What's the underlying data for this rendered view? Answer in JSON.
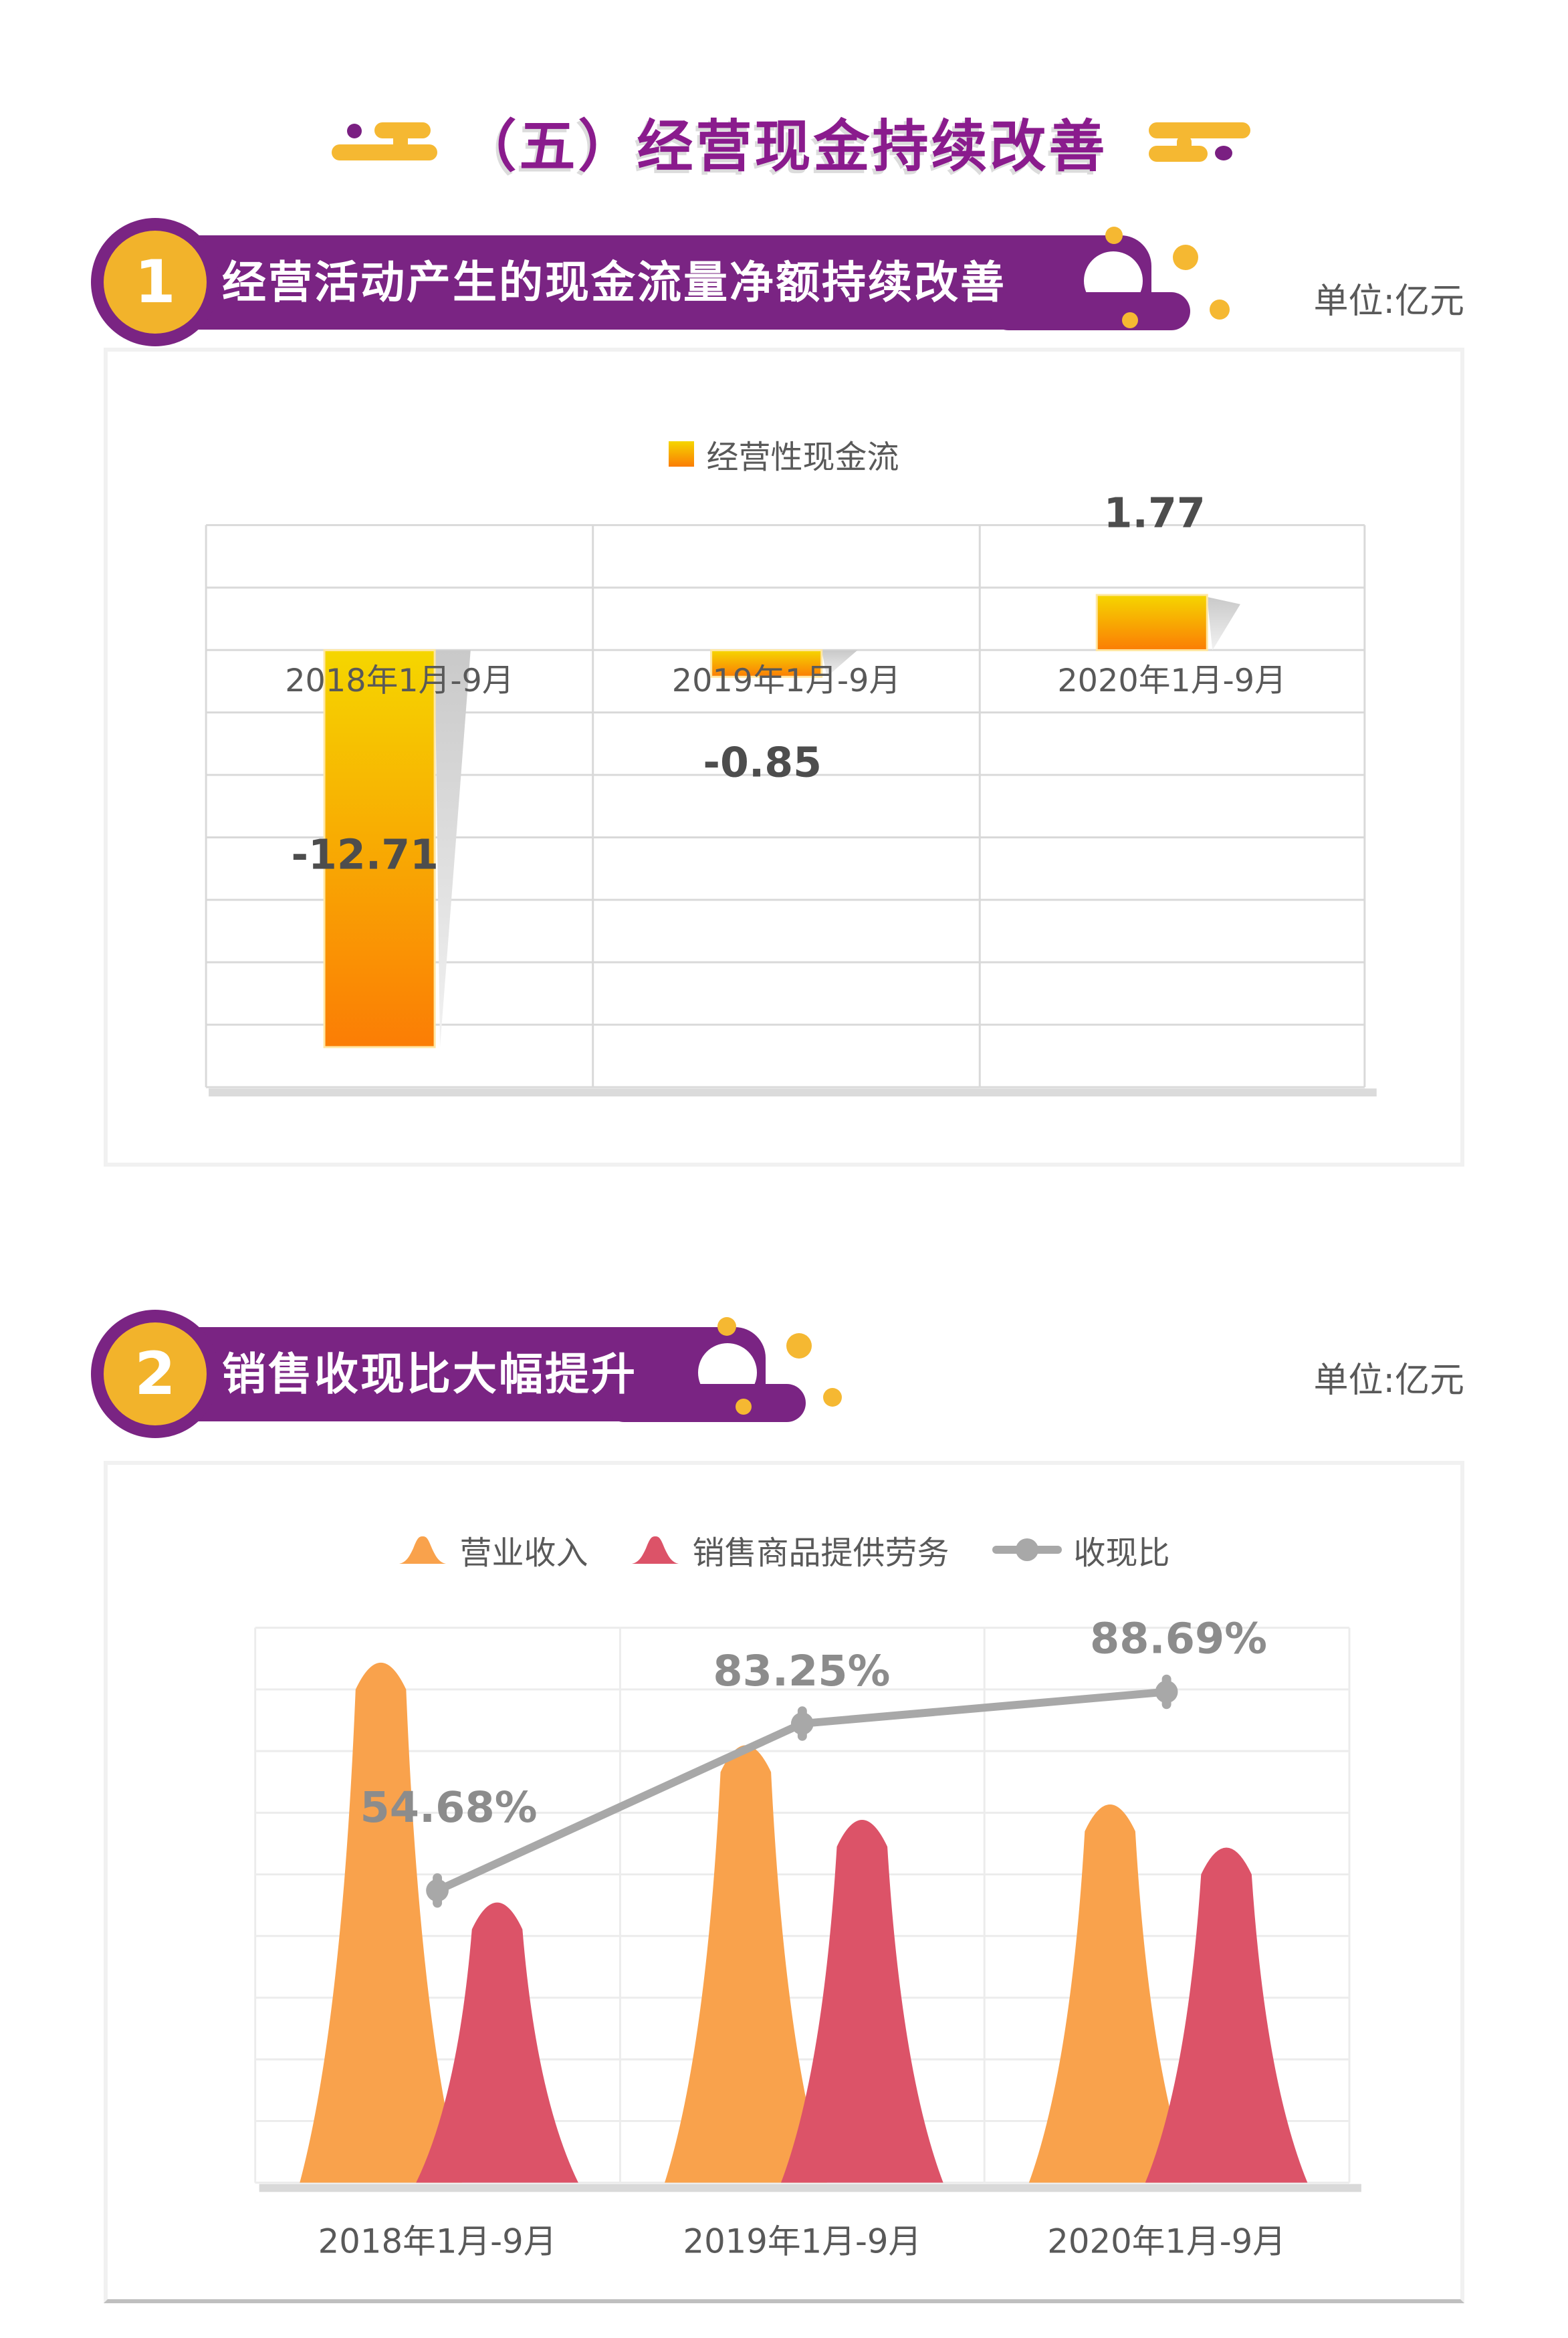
{
  "page": {
    "title": "（五）经营现金持续改善"
  },
  "sections": [
    {
      "number": "1",
      "title": "经营活动产生的现金流量净额持续改善",
      "unit": "单位:亿元"
    },
    {
      "number": "2",
      "title": "销售收现比大幅提升",
      "unit": "单位:亿元"
    }
  ],
  "colors": {
    "banner_purple": "#7A2483",
    "title_purple": "#8A1B8D",
    "accent_yellow": "#F2B32B",
    "bar_gradient_top": "#F5D600",
    "bar_gradient_bottom": "#FB7D05",
    "revenue_orange": "#F9A24C",
    "cash_red": "#DC5368",
    "ratio_gray": "#A8A8A8",
    "grid_gray_1": "#D9D9D9",
    "grid_gray_2": "#ECECEC",
    "label_gray": "#595959",
    "data_label_gray": "#4D4D4D",
    "pct_label_gray": "#8C8C8C"
  },
  "chart_data": [
    {
      "type": "bar",
      "legend": [
        "经营性现金流"
      ],
      "categories": [
        "2018年1月-9月",
        "2019年1月-9月",
        "2020年1月-9月"
      ],
      "values": [
        -12.71,
        -0.85,
        1.77
      ],
      "data_labels": [
        "-12.71",
        "-0.85",
        "1.77"
      ],
      "title": "",
      "xlabel": "",
      "ylabel": "",
      "ylim": [
        -14,
        4
      ],
      "gridline_step": 2,
      "grid": true,
      "legend_position": "top-center",
      "bar_color_gradient": [
        "#F5D600",
        "#FB7D05"
      ]
    },
    {
      "type": "combo",
      "categories": [
        "2018年1月-9月",
        "2019年1月-9月",
        "2020年1月-9月"
      ],
      "series": [
        {
          "name": "营业收入",
          "type": "peak-area",
          "color": "#F9A24C",
          "values_grid_units": [
            8.59,
            7.25,
            6.29
          ]
        },
        {
          "name": "销售商品提供劳务",
          "type": "peak-area",
          "color": "#DC5368",
          "values_grid_units": [
            4.7,
            6.04,
            5.59
          ]
        },
        {
          "name": "收现比",
          "type": "line",
          "color": "#A8A8A8",
          "values_pct": [
            54.68,
            83.25,
            88.69
          ],
          "labels": [
            "54.68%",
            "83.25%",
            "88.69%"
          ]
        }
      ],
      "grid": true,
      "grid_rows": 9,
      "legend_position": "top-center",
      "axis_note": "no numeric y-axis shown; peak heights estimated in gridline units"
    }
  ]
}
